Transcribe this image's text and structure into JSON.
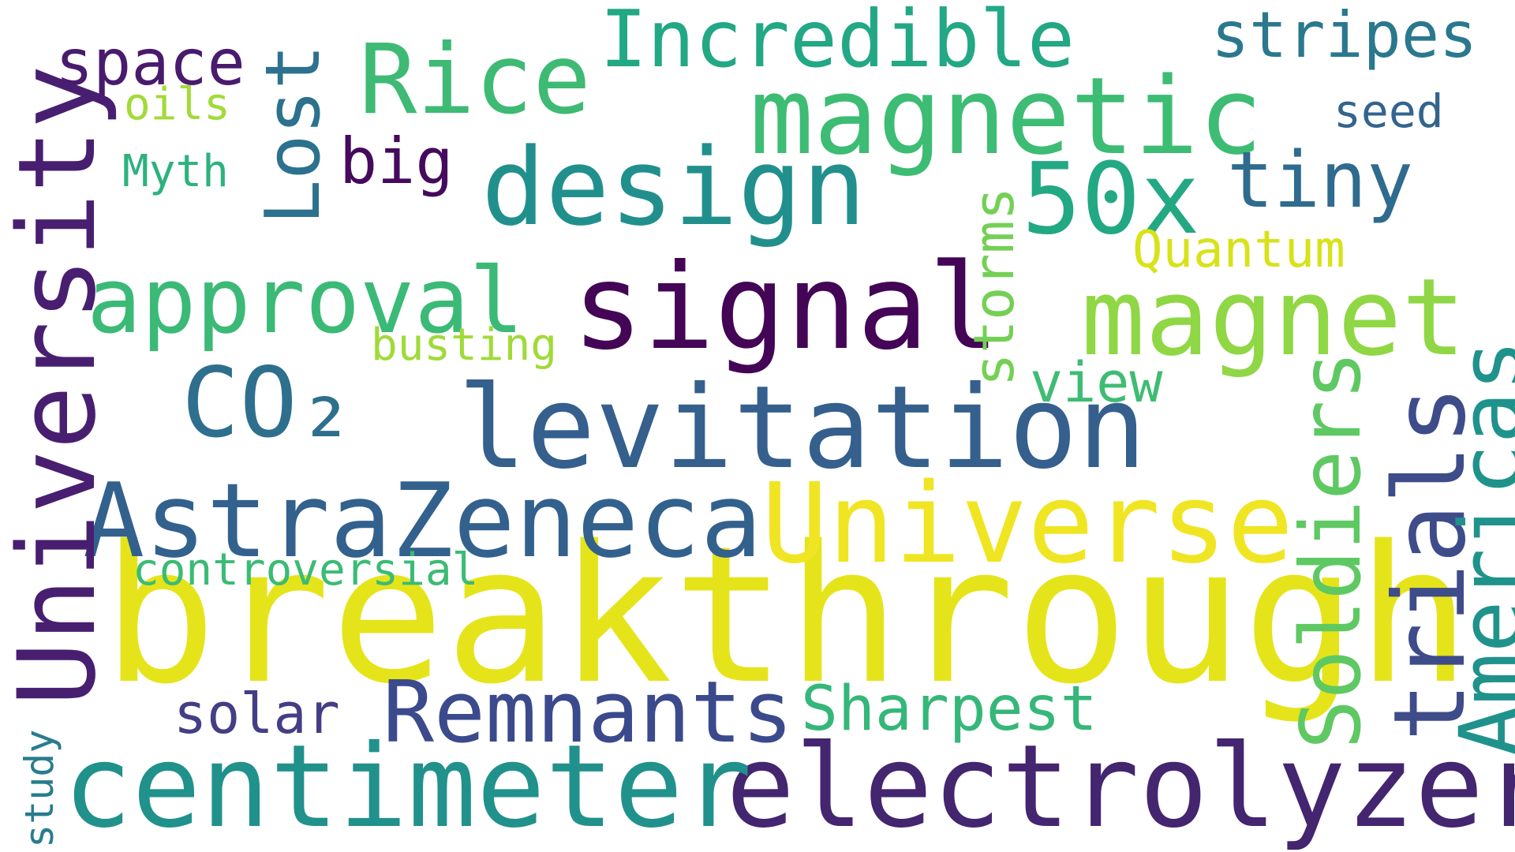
{
  "words": [
    {
      "id": "breakthrough",
      "text": "breakthrough",
      "color": "#e5e41a",
      "vertical": false
    },
    {
      "id": "electrolyzers",
      "text": "electrolyzers",
      "color": "#44256f",
      "vertical": false
    },
    {
      "id": "centimeter",
      "text": "centimeter",
      "color": "#21918c",
      "vertical": false
    },
    {
      "id": "signal",
      "text": "signal",
      "color": "#440556",
      "vertical": false
    },
    {
      "id": "levitation",
      "text": "levitation",
      "color": "#355f8d",
      "vertical": false
    },
    {
      "id": "universe",
      "text": "Universe",
      "color": "#f0e522",
      "vertical": false
    },
    {
      "id": "astrazeneca",
      "text": "AstraZeneca",
      "color": "#33618d",
      "vertical": false
    },
    {
      "id": "magnetic",
      "text": "magnetic",
      "color": "#3dbc74",
      "vertical": false
    },
    {
      "id": "design",
      "text": "design",
      "color": "#21908d",
      "vertical": false
    },
    {
      "id": "magnet",
      "text": "magnet",
      "color": "#8fd744",
      "vertical": false
    },
    {
      "id": "approval",
      "text": "approval",
      "color": "#3aba76",
      "vertical": false
    },
    {
      "id": "remnants",
      "text": "Remnants",
      "color": "#3b4a8c",
      "vertical": false
    },
    {
      "id": "rice",
      "text": "Rice",
      "color": "#3eba74",
      "vertical": false
    },
    {
      "id": "co2",
      "text": "CO₂",
      "color": "#2e6f8e",
      "vertical": false
    },
    {
      "id": "50x",
      "text": "50x",
      "color": "#23a884",
      "vertical": false
    },
    {
      "id": "incredible",
      "text": "Incredible",
      "color": "#22a884",
      "vertical": false
    },
    {
      "id": "tiny",
      "text": "tiny",
      "color": "#2f6b8e",
      "vertical": false
    },
    {
      "id": "stripes",
      "text": "stripes",
      "color": "#2a788e",
      "vertical": false
    },
    {
      "id": "space",
      "text": "space",
      "color": "#481b6d",
      "vertical": false
    },
    {
      "id": "big",
      "text": "big",
      "color": "#450a5c",
      "vertical": false
    },
    {
      "id": "solar",
      "text": "solar",
      "color": "#433e85",
      "vertical": false
    },
    {
      "id": "sharpest",
      "text": "Sharpest",
      "color": "#35b779",
      "vertical": false
    },
    {
      "id": "quantum",
      "text": "Quantum",
      "color": "#d8e219",
      "vertical": false
    },
    {
      "id": "view",
      "text": "view",
      "color": "#3fbc73",
      "vertical": false
    },
    {
      "id": "controversial",
      "text": "controversial",
      "color": "#3bbb75",
      "vertical": false
    },
    {
      "id": "busting",
      "text": "busting",
      "color": "#a0da39",
      "vertical": false
    },
    {
      "id": "myth",
      "text": "Myth",
      "color": "#2db27d",
      "vertical": false
    },
    {
      "id": "oils",
      "text": "oils",
      "color": "#a2da37",
      "vertical": false
    },
    {
      "id": "seed",
      "text": "seed",
      "color": "#32648e",
      "vertical": false
    },
    {
      "id": "university",
      "text": "University",
      "color": "#481f70",
      "vertical": true
    },
    {
      "id": "lost",
      "text": "Lost",
      "color": "#2c728e",
      "vertical": true
    },
    {
      "id": "storms",
      "text": "storms",
      "color": "#74d055",
      "vertical": true
    },
    {
      "id": "soldiers",
      "text": "Soldiers",
      "color": "#5ec962",
      "vertical": true
    },
    {
      "id": "trials",
      "text": "trials",
      "color": "#3e4c8a",
      "vertical": true
    },
    {
      "id": "americas",
      "text": "Americas",
      "color": "#20928c",
      "vertical": true
    },
    {
      "id": "study",
      "text": "study",
      "color": "#287c8e",
      "vertical": true
    }
  ]
}
